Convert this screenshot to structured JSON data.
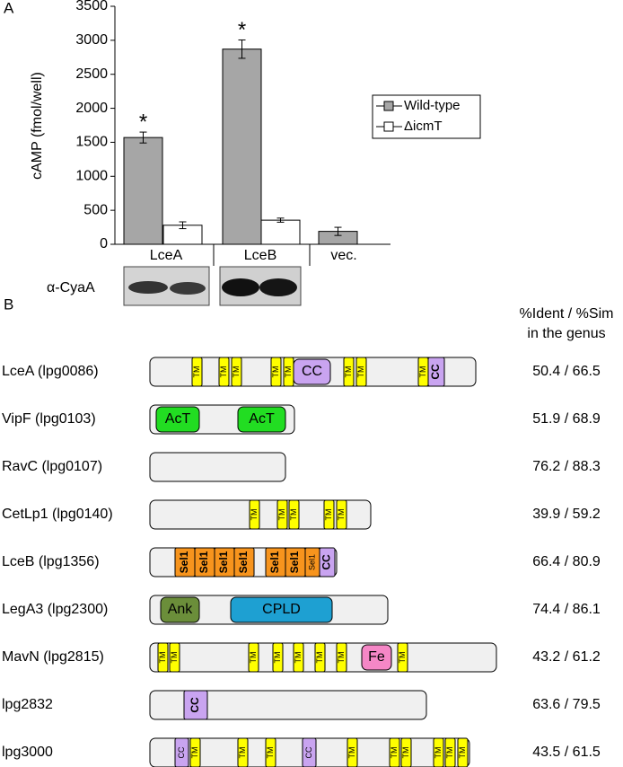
{
  "chart_data": {
    "type": "bar",
    "panel": "A",
    "y_label": "cAMP (fmol/well)",
    "categories": [
      "LceA",
      "LceB",
      "vec."
    ],
    "series": [
      {
        "name": "Wild-type",
        "color": "#a6a6a6",
        "values": [
          1570,
          2870,
          190
        ],
        "errors": [
          80,
          135,
          60
        ],
        "significance": [
          "*",
          "*",
          null
        ]
      },
      {
        "name": "ΔicmT",
        "color": "#ffffff",
        "values": [
          280,
          355,
          null
        ],
        "errors": [
          50,
          30,
          null
        ]
      }
    ],
    "ylim": [
      0,
      3500
    ],
    "yticks": [
      0,
      500,
      1000,
      1500,
      2000,
      2500,
      3000,
      3500
    ],
    "blot_label": "α-CyaA"
  },
  "diagram": {
    "panel": "B",
    "header": [
      "%Ident / %Sim",
      "in the genus"
    ],
    "proteins": [
      {
        "name": "LceA (lpg0086)",
        "identity": "50.4 / 66.5",
        "domains": [
          {
            "label": "TM",
            "color": "#ffff00",
            "vertical": true
          },
          {
            "label": "TM",
            "color": "#ffff00",
            "vertical": true
          },
          {
            "label": "TM",
            "color": "#ffff00",
            "vertical": true
          },
          {
            "label": "TM",
            "color": "#ffff00",
            "vertical": true
          },
          {
            "label": "TM",
            "color": "#ffff00",
            "vertical": true
          },
          {
            "label": "CC",
            "color": "#c9a4f0",
            "vertical": false
          },
          {
            "label": "TM",
            "color": "#ffff00",
            "vertical": true
          },
          {
            "label": "TM",
            "color": "#ffff00",
            "vertical": true
          },
          {
            "label": "TM",
            "color": "#ffff00",
            "vertical": true
          },
          {
            "label": "CC",
            "color": "#c9a4f0",
            "vertical": true
          }
        ]
      },
      {
        "name": "VipF (lpg0103)",
        "identity": "51.9 / 68.9",
        "domains": [
          {
            "label": "AcT",
            "color": "#22dd22",
            "vertical": false
          },
          {
            "label": "AcT",
            "color": "#22dd22",
            "vertical": false
          }
        ]
      },
      {
        "name": "RavC (lpg0107)",
        "identity": "76.2 / 88.3",
        "domains": []
      },
      {
        "name": "CetLp1 (lpg0140)",
        "identity": "39.9 / 59.2",
        "domains": [
          {
            "label": "TM",
            "color": "#ffff00",
            "vertical": true
          },
          {
            "label": "TM",
            "color": "#ffff00",
            "vertical": true
          },
          {
            "label": "TM",
            "color": "#ffff00",
            "vertical": true
          },
          {
            "label": "TM",
            "color": "#ffff00",
            "vertical": true
          },
          {
            "label": "TM",
            "color": "#ffff00",
            "vertical": true
          }
        ]
      },
      {
        "name": "LceB (lpg1356)",
        "identity": "66.4 / 80.9",
        "domains": [
          {
            "label": "Sel1",
            "color": "#f7941d",
            "vertical": true
          },
          {
            "label": "Sel1",
            "color": "#f7941d",
            "vertical": true
          },
          {
            "label": "Sel1",
            "color": "#f7941d",
            "vertical": true
          },
          {
            "label": "Sel1",
            "color": "#f7941d",
            "vertical": true
          },
          {
            "label": "Sel1",
            "color": "#f7941d",
            "vertical": true
          },
          {
            "label": "Sel1",
            "color": "#f7941d",
            "vertical": true
          },
          {
            "label": "Sel1",
            "color": "#f7941d",
            "vertical": true
          },
          {
            "label": "CC",
            "color": "#c9a4f0",
            "vertical": true
          }
        ]
      },
      {
        "name": "LegA3 (lpg2300)",
        "identity": "74.4 / 86.1",
        "domains": [
          {
            "label": "Ank",
            "color": "#6b8e3a",
            "vertical": false
          },
          {
            "label": "CPLD",
            "color": "#1ea0d2",
            "vertical": false
          }
        ]
      },
      {
        "name": "MavN (lpg2815)",
        "identity": "43.2 / 61.2",
        "domains": [
          {
            "label": "TM",
            "color": "#ffff00",
            "vertical": true
          },
          {
            "label": "TM",
            "color": "#ffff00",
            "vertical": true
          },
          {
            "label": "TM",
            "color": "#ffff00",
            "vertical": true
          },
          {
            "label": "TM",
            "color": "#ffff00",
            "vertical": true
          },
          {
            "label": "TM",
            "color": "#ffff00",
            "vertical": true
          },
          {
            "label": "TM",
            "color": "#ffff00",
            "vertical": true
          },
          {
            "label": "TM",
            "color": "#ffff00",
            "vertical": true
          },
          {
            "label": "Fe",
            "color": "#f587c6",
            "vertical": false
          },
          {
            "label": "TM",
            "color": "#ffff00",
            "vertical": true
          }
        ]
      },
      {
        "name": "lpg2832",
        "identity": "63.6 / 79.5",
        "domains": [
          {
            "label": "CC",
            "color": "#c9a4f0",
            "vertical": true
          }
        ]
      },
      {
        "name": "lpg3000",
        "identity": "43.5 / 61.5",
        "domains": [
          {
            "label": "CC",
            "color": "#c9a4f0",
            "vertical": true
          },
          {
            "label": "TM",
            "color": "#ffff00",
            "vertical": true
          },
          {
            "label": "TM",
            "color": "#ffff00",
            "vertical": true
          },
          {
            "label": "TM",
            "color": "#ffff00",
            "vertical": true
          },
          {
            "label": "CC",
            "color": "#c9a4f0",
            "vertical": true
          },
          {
            "label": "TM",
            "color": "#ffff00",
            "vertical": true
          },
          {
            "label": "TM",
            "color": "#ffff00",
            "vertical": true
          },
          {
            "label": "TM",
            "color": "#ffff00",
            "vertical": true
          },
          {
            "label": "TM",
            "color": "#ffff00",
            "vertical": true
          },
          {
            "label": "TM",
            "color": "#ffff00",
            "vertical": true
          },
          {
            "label": "TM",
            "color": "#ffff00",
            "vertical": true
          }
        ]
      }
    ]
  }
}
